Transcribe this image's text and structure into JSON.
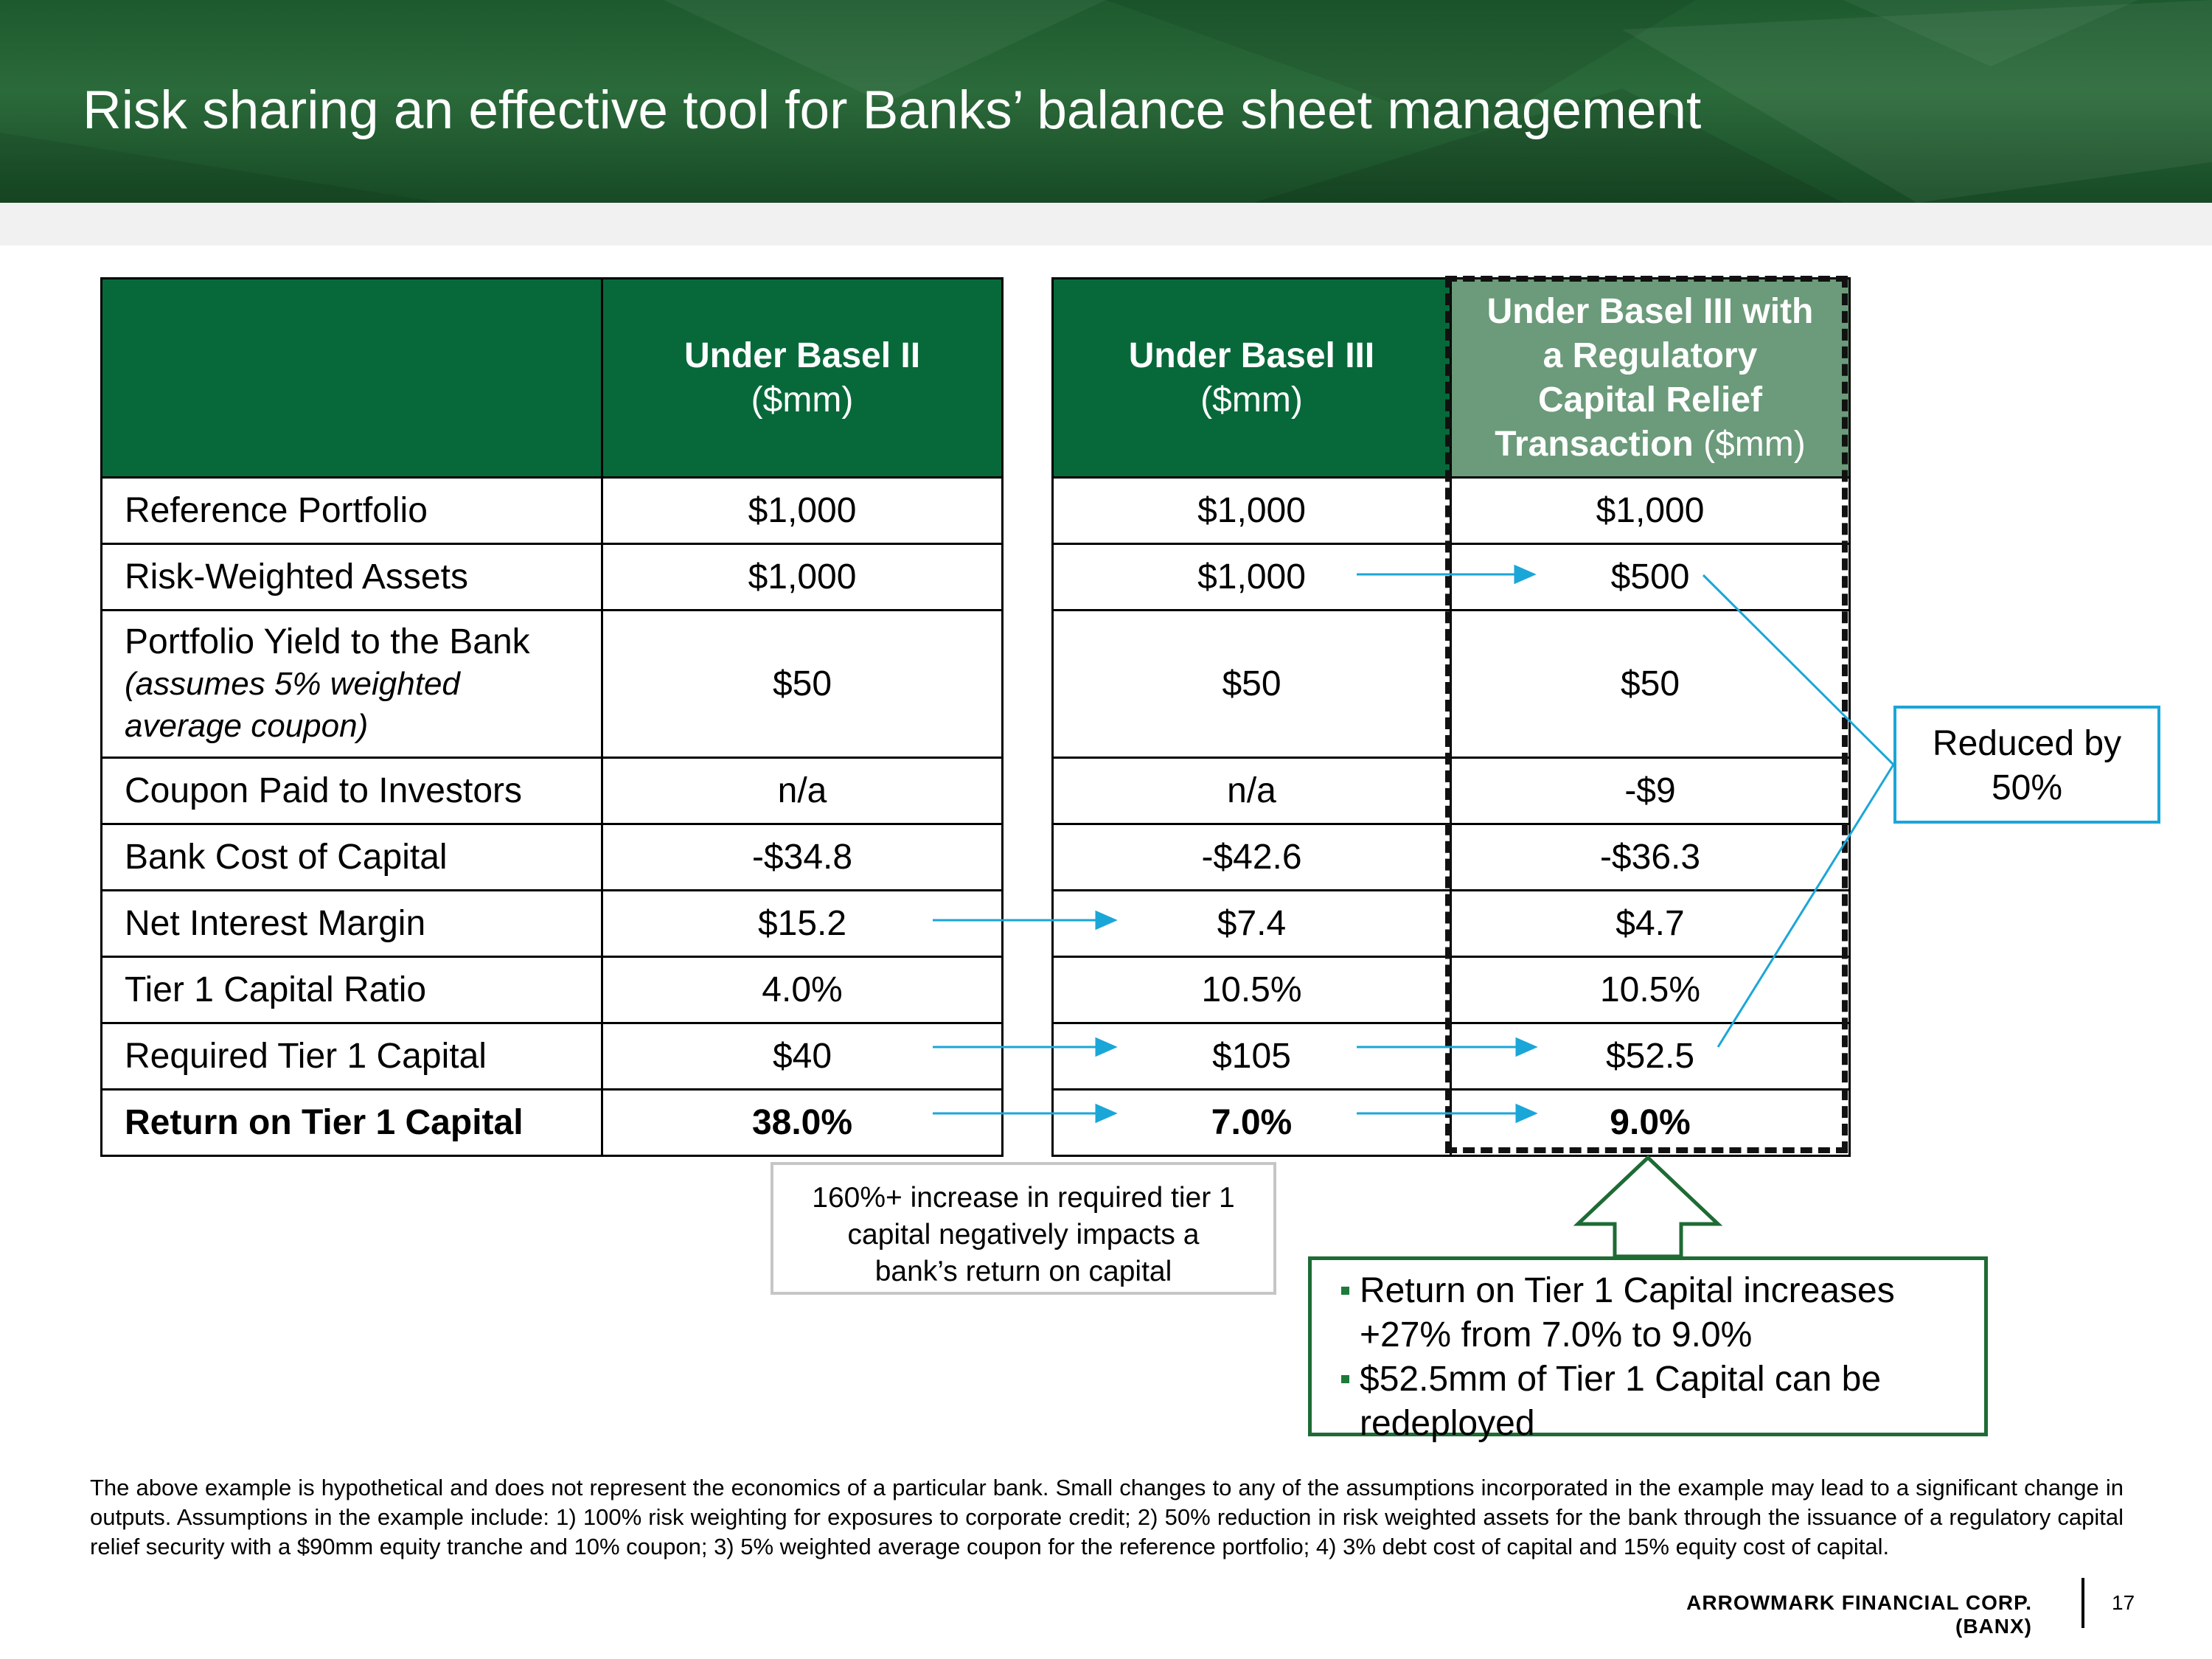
{
  "slide": {
    "title": "Risk sharing an effective tool for Banks’ balance sheet management",
    "page_number": "17",
    "company": "ARROWMARK FINANCIAL CORP. (BANX)"
  },
  "colors": {
    "header_green": "#07693a",
    "header_light_green": "#6b9b7a",
    "arrow_blue": "#1ba6d8",
    "callout_green": "#1e6b34"
  },
  "table": {
    "columns": [
      {
        "title": "Under Basel II",
        "unit": "($mm)"
      },
      {
        "title": "Under Basel III",
        "unit": "($mm)"
      },
      {
        "title_line1": "Under Basel III with",
        "title_line2": "a  Regulatory",
        "title_line3": "Capital Relief",
        "title_line4": "Transaction",
        "unit": "($mm)"
      }
    ],
    "rows": [
      {
        "label": "Reference Portfolio",
        "basel2": "$1,000",
        "basel3": "$1,000",
        "relief": "$1,000"
      },
      {
        "label": "Risk-Weighted Assets",
        "basel2": "$1,000",
        "basel3": "$1,000",
        "relief": "$500"
      },
      {
        "label": "Portfolio Yield to the Bank",
        "note_line1": "(assumes 5% weighted",
        "note_line2": "average coupon)",
        "basel2": "$50",
        "basel3": "$50",
        "relief": "$50"
      },
      {
        "label": "Coupon Paid to Investors",
        "basel2": "n/a",
        "basel3": "n/a",
        "relief": "-$9"
      },
      {
        "label": "Bank Cost of Capital",
        "basel2": "-$34.8",
        "basel3": "-$42.6",
        "relief": "-$36.3"
      },
      {
        "label": "Net Interest Margin",
        "basel2": "$15.2",
        "basel3": "$7.4",
        "relief": "$4.7"
      },
      {
        "label": "Tier 1 Capital Ratio",
        "basel2": "4.0%",
        "basel3": "10.5%",
        "relief": "10.5%"
      },
      {
        "label": "Required Tier 1 Capital",
        "basel2": "$40",
        "basel3": "$105",
        "relief": "$52.5"
      },
      {
        "label": "Return on Tier 1 Capital",
        "basel2": "38.0%",
        "basel3": "7.0%",
        "relief": "9.0%"
      }
    ]
  },
  "callouts": {
    "reduced_line1": "Reduced by",
    "reduced_line2": "50%",
    "gray_line1": "160%+ increase in required tier 1",
    "gray_line2": "capital negatively impacts a",
    "gray_line3": "bank’s return on capital",
    "green_bullets": [
      {
        "line1": "Return on Tier 1 Capital increases",
        "line2": "+27% from 7.0% to 9.0%"
      },
      {
        "line1": "$52.5mm of Tier 1 Capital can be",
        "line2": "redeployed"
      }
    ]
  },
  "footnote": "The above example is hypothetical and does not represent the economics of a particular bank. Small changes to any of the assumptions incorporated in the example may lead to a significant change in outputs. Assumptions in the example include: 1) 100% risk weighting for exposures to corporate credit; 2) 50% reduction in risk weighted assets for the bank through the issuance of a regulatory capital relief security with a $90mm equity tranche and 10% coupon; 3) 5% weighted average coupon for the reference portfolio; 4) 3% debt cost of capital and 15% equity cost of capital."
}
